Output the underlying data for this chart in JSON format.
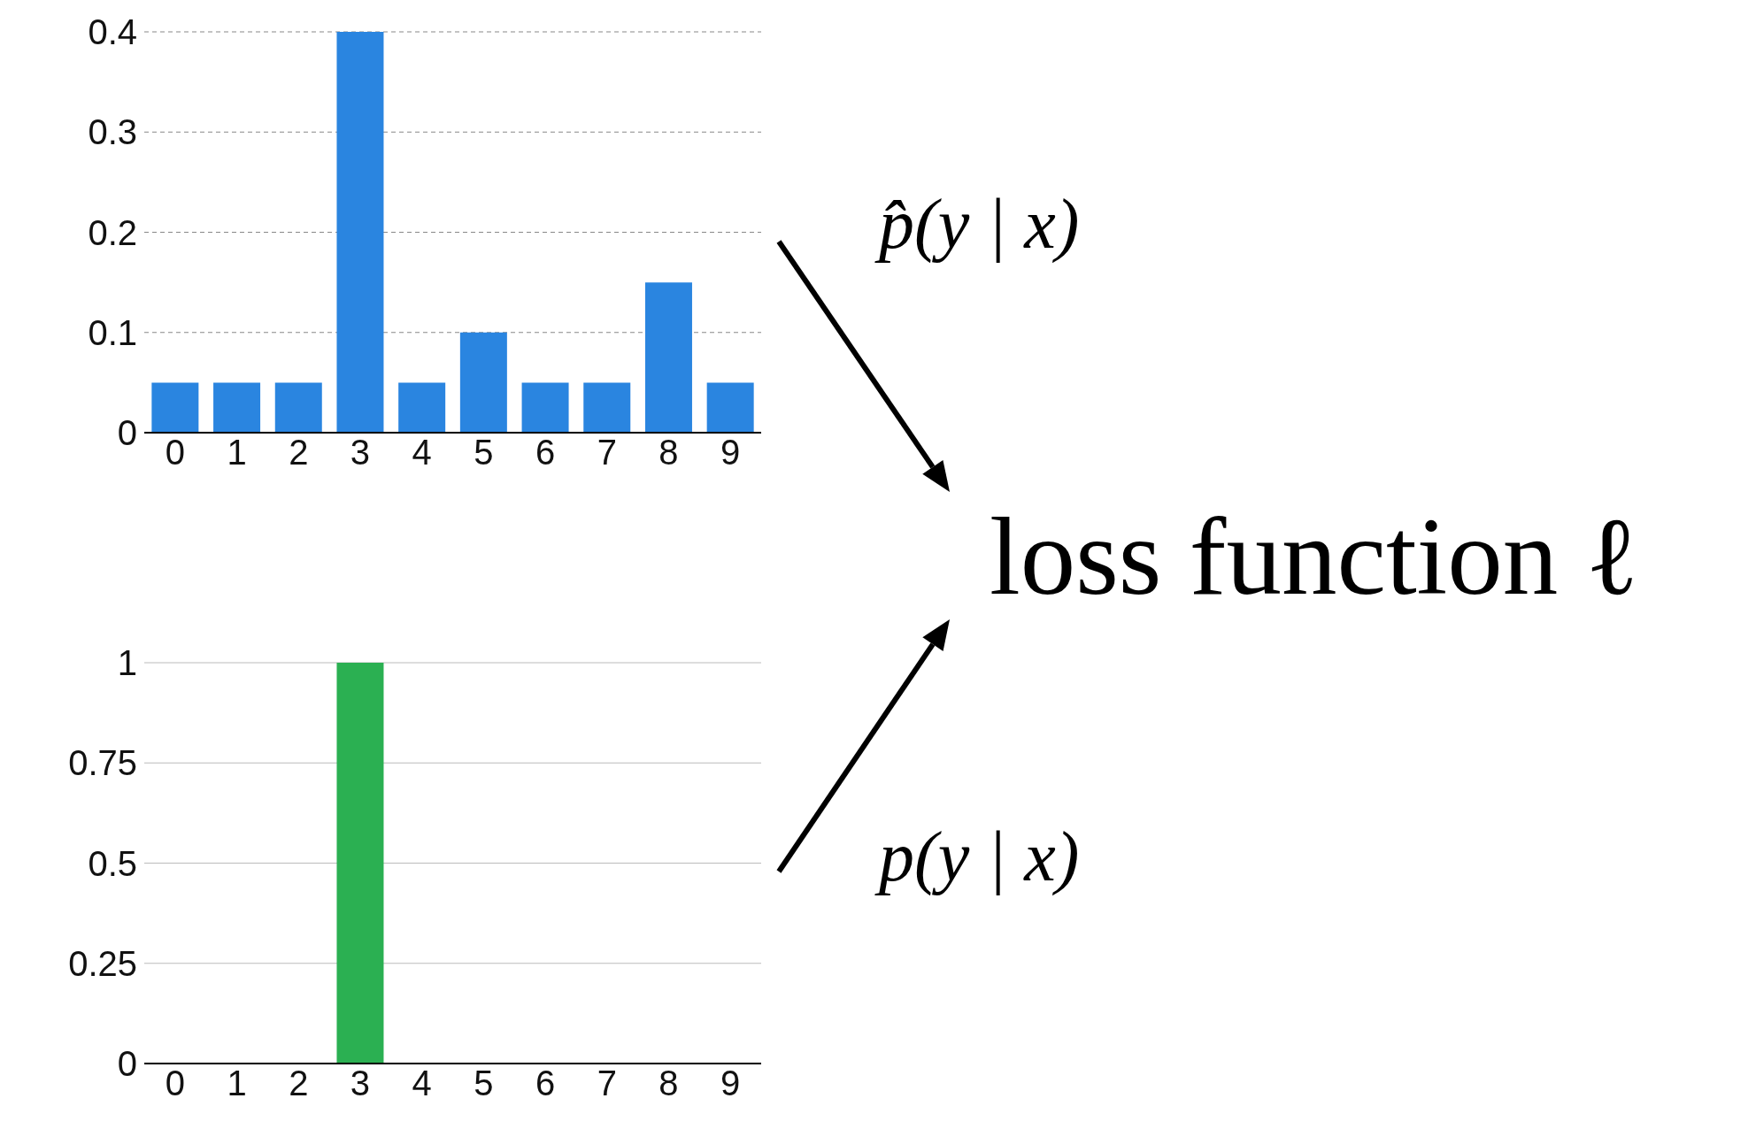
{
  "chart_data": [
    {
      "type": "bar",
      "categories": [
        "0",
        "1",
        "2",
        "3",
        "4",
        "5",
        "6",
        "7",
        "8",
        "9"
      ],
      "values": [
        0.05,
        0.05,
        0.05,
        0.4,
        0.05,
        0.1,
        0.05,
        0.05,
        0.15,
        0.05
      ],
      "color": "#2a85e0",
      "ylim": [
        0,
        0.4
      ],
      "yticks": [
        0,
        0.1,
        0.2,
        0.3,
        0.4
      ],
      "grid": "y",
      "annotations": [
        "p̂(y | x)"
      ]
    },
    {
      "type": "bar",
      "categories": [
        "0",
        "1",
        "2",
        "3",
        "4",
        "5",
        "6",
        "7",
        "8",
        "9"
      ],
      "values": [
        0,
        0,
        0,
        1,
        0,
        0,
        0,
        0,
        0,
        0
      ],
      "color": "#2bb052",
      "ylim": [
        0,
        1
      ],
      "yticks": [
        0,
        0.25,
        0.5,
        0.75,
        1
      ],
      "grid": "y",
      "annotations": [
        "p(y | x)"
      ]
    },
    {
      "type": "other",
      "annotations": [
        "loss function ℓ"
      ]
    }
  ]
}
